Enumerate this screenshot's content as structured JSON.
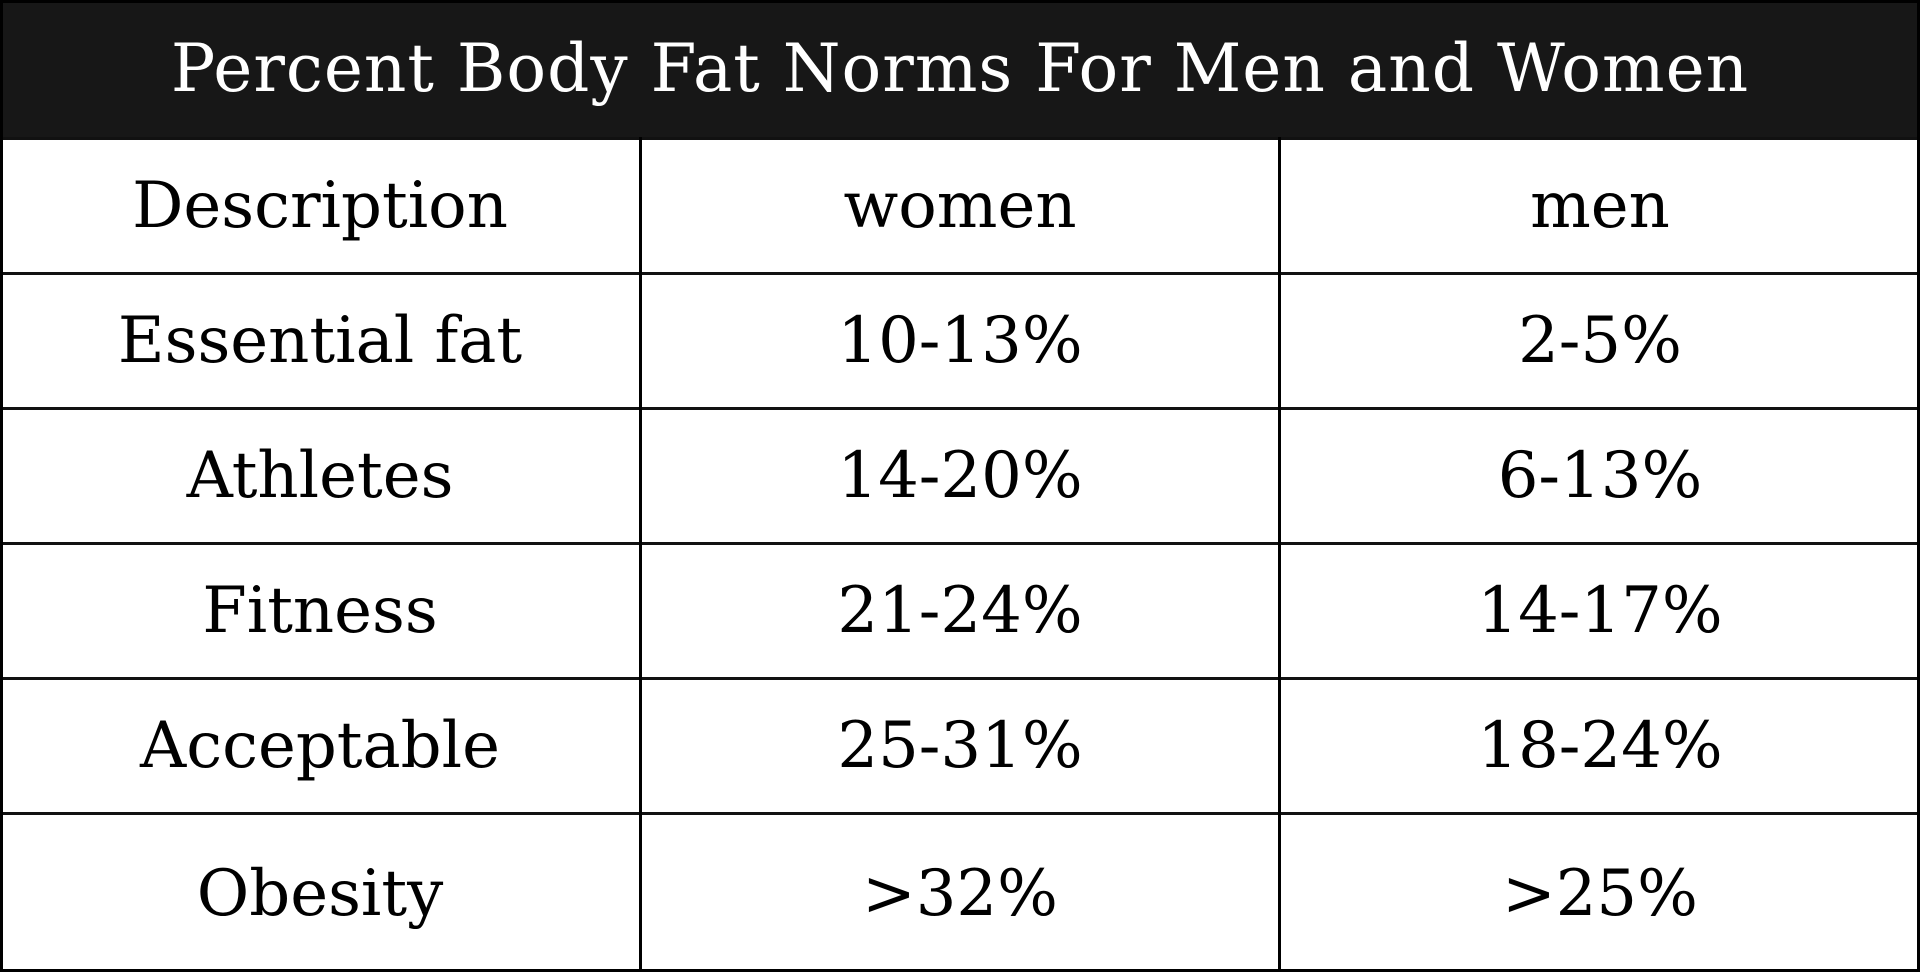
{
  "title": "Percent Body Fat Norms For Men and Women",
  "header": {
    "description": "Description",
    "women": "women",
    "men": "men"
  },
  "rows": [
    {
      "description": "Essential fat",
      "women": "10-13%",
      "men": "2-5%"
    },
    {
      "description": "Athletes",
      "women": "14-20%",
      "men": "6-13%"
    },
    {
      "description": "Fitness",
      "women": "21-24%",
      "men": "14-17%"
    },
    {
      "description": "Acceptable",
      "women": "25-31%",
      "men": "18-24%"
    },
    {
      "description": "Obesity",
      "women": ">32%",
      "men": ">25%"
    }
  ],
  "colors": {
    "title_background": "#171717",
    "title_text": "#ffffff",
    "grid_lines": "#000000",
    "cell_background": "#ffffff"
  }
}
